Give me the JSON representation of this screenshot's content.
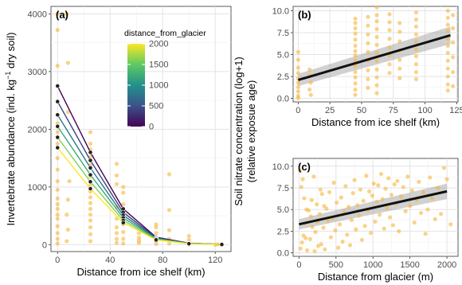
{
  "chart_data": [
    {
      "panel": "(a)",
      "type": "scatter",
      "xlabel": "Distance from ice shelf (km)",
      "ylabel": "Invertebrate abundance (ind. kg",
      "ylabel_sup": "−1",
      "ylabel_tail": " dry soil)",
      "xlim": [
        -5,
        132
      ],
      "ylim": [
        -120,
        4130
      ],
      "xticks": [
        0,
        40,
        80,
        120
      ],
      "yticks": [
        0,
        1000,
        2000,
        3000,
        4000
      ],
      "grid": true,
      "legend": {
        "title": "distance_from_glacier",
        "placement": "top-right inside",
        "range": [
          0,
          2000
        ],
        "ticks": [
          0,
          500,
          1000,
          1500,
          2000
        ]
      },
      "point_color": "#f5b63a",
      "points": [
        [
          0,
          4000
        ],
        [
          0,
          3720
        ],
        [
          0,
          3100
        ],
        [
          0,
          2100
        ],
        [
          0,
          1950
        ],
        [
          0,
          1750
        ],
        [
          0,
          1500
        ],
        [
          0,
          1300
        ],
        [
          0,
          1100
        ],
        [
          0,
          950
        ],
        [
          0,
          800
        ],
        [
          0,
          700
        ],
        [
          0,
          620
        ],
        [
          0,
          520
        ],
        [
          0,
          450
        ],
        [
          0,
          320
        ],
        [
          0,
          200
        ],
        [
          0,
          100
        ],
        [
          0,
          20
        ],
        [
          7,
          4000
        ],
        [
          8,
          3150
        ],
        [
          8,
          2300
        ],
        [
          9,
          1100
        ],
        [
          8,
          780
        ],
        [
          7,
          520
        ],
        [
          8,
          260
        ],
        [
          7,
          60
        ],
        [
          25,
          1950
        ],
        [
          25,
          1750
        ],
        [
          25,
          1650
        ],
        [
          25,
          1520
        ],
        [
          25,
          1380
        ],
        [
          25,
          1180
        ],
        [
          25,
          1040
        ],
        [
          25,
          920
        ],
        [
          25,
          820
        ],
        [
          25,
          720
        ],
        [
          25,
          620
        ],
        [
          25,
          520
        ],
        [
          25,
          420
        ],
        [
          25,
          300
        ],
        [
          25,
          180
        ],
        [
          25,
          60
        ],
        [
          45,
          1400
        ],
        [
          45,
          1200
        ],
        [
          45,
          1050
        ],
        [
          45,
          650
        ],
        [
          45,
          450
        ],
        [
          45,
          300
        ],
        [
          45,
          200
        ],
        [
          45,
          100
        ],
        [
          45,
          30
        ],
        [
          50,
          1000
        ],
        [
          50,
          900
        ],
        [
          50,
          700
        ],
        [
          50,
          500
        ],
        [
          50,
          350
        ],
        [
          50,
          220
        ],
        [
          50,
          100
        ],
        [
          50,
          20
        ],
        [
          62,
          200
        ],
        [
          62,
          120
        ],
        [
          62,
          70
        ],
        [
          62,
          30
        ],
        [
          75,
          350
        ],
        [
          75,
          300
        ],
        [
          75,
          200
        ],
        [
          75,
          120
        ],
        [
          75,
          60
        ],
        [
          75,
          10
        ],
        [
          85,
          1220
        ],
        [
          85,
          600
        ],
        [
          85,
          250
        ],
        [
          85,
          100
        ],
        [
          85,
          20
        ],
        [
          100,
          150
        ],
        [
          100,
          80
        ],
        [
          100,
          30
        ],
        [
          100,
          5
        ],
        [
          120,
          0
        ],
        [
          122,
          5
        ],
        [
          125,
          0
        ]
      ],
      "series": [
        {
          "glacier_distance": 0,
          "x": [
            0,
            25,
            50,
            75,
            100,
            125
          ],
          "y": [
            2750,
            1600,
            620,
            130,
            25,
            5
          ]
        },
        {
          "glacier_distance": 400,
          "x": [
            0,
            25,
            50,
            75,
            100,
            125
          ],
          "y": [
            2480,
            1460,
            560,
            120,
            23,
            4
          ]
        },
        {
          "glacier_distance": 800,
          "x": [
            0,
            25,
            50,
            75,
            100,
            125
          ],
          "y": [
            2250,
            1330,
            510,
            110,
            22,
            4
          ]
        },
        {
          "glacier_distance": 1200,
          "x": [
            0,
            25,
            50,
            75,
            100,
            125
          ],
          "y": [
            2050,
            1210,
            465,
            100,
            20,
            3
          ]
        },
        {
          "glacier_distance": 1600,
          "x": [
            0,
            25,
            50,
            75,
            100,
            125
          ],
          "y": [
            1860,
            1090,
            420,
            90,
            18,
            3
          ]
        },
        {
          "glacier_distance": 2000,
          "x": [
            0,
            25,
            50,
            75,
            100,
            125
          ],
          "y": [
            1680,
            970,
            380,
            82,
            16,
            3
          ]
        }
      ]
    },
    {
      "panel": "(b)",
      "type": "scatter",
      "xlabel": "Distance from ice shelf (km)",
      "xlim": [
        -4,
        126
      ],
      "ylim": [
        -0.4,
        10.5
      ],
      "xticks": [
        0,
        25,
        50,
        75,
        100,
        125
      ],
      "yticks": [
        0.0,
        2.5,
        5.0,
        7.5,
        10.0
      ],
      "yticklabels": [
        "0.0",
        "2.5",
        "5.0",
        "7.5",
        "10.0"
      ],
      "grid": true,
      "point_color": "#f5b63a",
      "regression": {
        "x": [
          0,
          120
        ],
        "y": [
          2.1,
          7.2
        ],
        "ci_lower": [
          1.4,
          6.2
        ],
        "ci_upper": [
          2.8,
          8.2
        ]
      },
      "points": [
        [
          0,
          5.3
        ],
        [
          0,
          4.4
        ],
        [
          0,
          3.5
        ],
        [
          0,
          2.9
        ],
        [
          0,
          2.3
        ],
        [
          0,
          1.8
        ],
        [
          0,
          1.3
        ],
        [
          0,
          0.8
        ],
        [
          0,
          0.3
        ],
        [
          0,
          0.05
        ],
        [
          9,
          3.3
        ],
        [
          9,
          2.6
        ],
        [
          10,
          1.8
        ],
        [
          9,
          1.0
        ],
        [
          10,
          0.4
        ],
        [
          45,
          9.1
        ],
        [
          45,
          8.6
        ],
        [
          45,
          8.0
        ],
        [
          45,
          7.4
        ],
        [
          45,
          6.7
        ],
        [
          45,
          6.0
        ],
        [
          45,
          5.4
        ],
        [
          45,
          4.9
        ],
        [
          45,
          4.3
        ],
        [
          45,
          3.7
        ],
        [
          45,
          3.0
        ],
        [
          45,
          2.4
        ],
        [
          45,
          1.7
        ],
        [
          45,
          1.0
        ],
        [
          45,
          0.4
        ],
        [
          55,
          9.3
        ],
        [
          55,
          8.3
        ],
        [
          55,
          7.3
        ],
        [
          55,
          6.3
        ],
        [
          55,
          5.3
        ],
        [
          55,
          4.3
        ],
        [
          55,
          3.2
        ],
        [
          55,
          2.2
        ],
        [
          55,
          1.2
        ],
        [
          62,
          10.4
        ],
        [
          62,
          9.5
        ],
        [
          62,
          8.8
        ],
        [
          62,
          7.9
        ],
        [
          62,
          7.0
        ],
        [
          62,
          6.1
        ],
        [
          62,
          5.2
        ],
        [
          62,
          4.3
        ],
        [
          62,
          3.3
        ],
        [
          62,
          2.4
        ],
        [
          62,
          1.5
        ],
        [
          62,
          0.6
        ],
        [
          72,
          9.6
        ],
        [
          72,
          8.7
        ],
        [
          72,
          7.8
        ],
        [
          72,
          6.8
        ],
        [
          72,
          5.8
        ],
        [
          72,
          4.9
        ],
        [
          72,
          3.9
        ],
        [
          72,
          2.9
        ],
        [
          80,
          8.6
        ],
        [
          80,
          7.6
        ],
        [
          80,
          6.5
        ],
        [
          80,
          5.5
        ],
        [
          80,
          4.4
        ],
        [
          80,
          3.4
        ],
        [
          80,
          2.3
        ],
        [
          93,
          9.8
        ],
        [
          93,
          9.0
        ],
        [
          93,
          8.2
        ],
        [
          93,
          7.3
        ],
        [
          93,
          6.5
        ],
        [
          93,
          5.6
        ],
        [
          93,
          4.8
        ],
        [
          93,
          3.9
        ],
        [
          93,
          3.0
        ],
        [
          93,
          2.2
        ],
        [
          118,
          10.0
        ],
        [
          118,
          9.2
        ],
        [
          118,
          8.4
        ],
        [
          118,
          7.7
        ],
        [
          118,
          6.8
        ],
        [
          118,
          6.0
        ],
        [
          118,
          5.2
        ],
        [
          118,
          4.3
        ],
        [
          118,
          3.4
        ],
        [
          118,
          2.5
        ],
        [
          118,
          1.6
        ],
        [
          118,
          0.9
        ],
        [
          122,
          9.5
        ],
        [
          122,
          8.0
        ],
        [
          122,
          6.4
        ],
        [
          122,
          4.7
        ],
        [
          122,
          3.0
        ],
        [
          122,
          1.4
        ]
      ]
    },
    {
      "panel": "(c)",
      "type": "scatter",
      "xlabel": "Distance from glacier (m)",
      "xlim": [
        -80,
        2150
      ],
      "ylim": [
        -0.4,
        10.9
      ],
      "xticks": [
        0,
        500,
        1000,
        1500,
        2000
      ],
      "yticks": [
        0.0,
        2.5,
        5.0,
        7.5,
        10.0
      ],
      "yticklabels": [
        "0.0",
        "2.5",
        "5.0",
        "7.5",
        "10.0"
      ],
      "grid": true,
      "point_color": "#f5b63a",
      "regression": {
        "x": [
          0,
          2000
        ],
        "y": [
          3.3,
          7.1
        ],
        "ci_lower": [
          2.7,
          6.2
        ],
        "ci_upper": [
          3.9,
          8.0
        ]
      },
      "points": [
        [
          20,
          0.5
        ],
        [
          40,
          1.2
        ],
        [
          60,
          2.0
        ],
        [
          80,
          3.4
        ],
        [
          100,
          5.0
        ],
        [
          30,
          7.6
        ],
        [
          70,
          6.3
        ],
        [
          110,
          0.3
        ],
        [
          150,
          1.6
        ],
        [
          160,
          4.2
        ],
        [
          180,
          3.0
        ],
        [
          200,
          8.8
        ],
        [
          220,
          2.4
        ],
        [
          240,
          5.6
        ],
        [
          260,
          0.8
        ],
        [
          280,
          4.5
        ],
        [
          300,
          1.0
        ],
        [
          310,
          6.8
        ],
        [
          330,
          2.9
        ],
        [
          350,
          0.4
        ],
        [
          370,
          5.1
        ],
        [
          390,
          3.7
        ],
        [
          410,
          7.0
        ],
        [
          430,
          1.8
        ],
        [
          450,
          4.0
        ],
        [
          470,
          8.1
        ],
        [
          490,
          2.6
        ],
        [
          510,
          5.8
        ],
        [
          530,
          0.6
        ],
        [
          550,
          3.3
        ],
        [
          570,
          6.4
        ],
        [
          590,
          1.3
        ],
        [
          610,
          4.7
        ],
        [
          630,
          7.7
        ],
        [
          650,
          2.1
        ],
        [
          670,
          5.3
        ],
        [
          690,
          0.9
        ],
        [
          710,
          3.8
        ],
        [
          730,
          6.9
        ],
        [
          750,
          8.4
        ],
        [
          770,
          2.7
        ],
        [
          790,
          5.5
        ],
        [
          810,
          4.3
        ],
        [
          830,
          7.3
        ],
        [
          850,
          1.5
        ],
        [
          870,
          6.0
        ],
        [
          890,
          3.1
        ],
        [
          910,
          8.9
        ],
        [
          930,
          4.9
        ],
        [
          950,
          7.1
        ],
        [
          970,
          2.3
        ],
        [
          990,
          6.6
        ],
        [
          1010,
          8.0
        ],
        [
          1030,
          3.6
        ],
        [
          1050,
          5.9
        ],
        [
          1070,
          7.8
        ],
        [
          1090,
          4.4
        ],
        [
          1110,
          9.1
        ],
        [
          1130,
          6.2
        ],
        [
          1150,
          2.8
        ],
        [
          1170,
          7.4
        ],
        [
          1190,
          5.2
        ],
        [
          1210,
          8.6
        ],
        [
          1230,
          4.1
        ],
        [
          1250,
          6.7
        ],
        [
          1270,
          3.2
        ],
        [
          1290,
          7.9
        ],
        [
          1310,
          5.7
        ],
        [
          1330,
          8.3
        ],
        [
          1350,
          2.5
        ],
        [
          1380,
          6.5
        ],
        [
          1410,
          7.6
        ],
        [
          1440,
          4.8
        ],
        [
          1470,
          8.8
        ],
        [
          1500,
          5.4
        ],
        [
          1530,
          7.2
        ],
        [
          1560,
          3.5
        ],
        [
          1590,
          6.1
        ],
        [
          1620,
          8.2
        ],
        [
          1650,
          4.6
        ],
        [
          1680,
          7.0
        ],
        [
          1710,
          2.2
        ],
        [
          1740,
          5.0
        ],
        [
          1770,
          8.7
        ],
        [
          1800,
          6.3
        ],
        [
          1840,
          3.9
        ],
        [
          1880,
          7.5
        ],
        [
          1920,
          4.5
        ],
        [
          1960,
          9.8
        ],
        [
          2000,
          8.5
        ],
        [
          2050,
          3.3
        ],
        [
          10,
          9.5
        ],
        [
          50,
          8.5
        ],
        [
          90,
          1.7
        ],
        [
          130,
          4.9
        ],
        [
          170,
          6.1
        ],
        [
          210,
          0.2
        ],
        [
          250,
          3.6
        ],
        [
          290,
          7.3
        ],
        [
          340,
          5.4
        ]
      ]
    }
  ],
  "shared": {
    "ylabel_bc": "Soil nitrate concentration (log+1)",
    "ylabel_bc_sub": "(relative exposue age)"
  }
}
